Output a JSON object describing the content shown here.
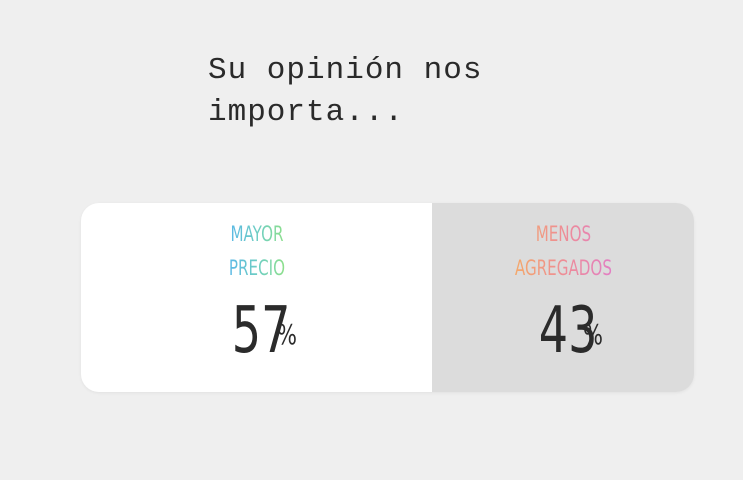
{
  "question": {
    "text": "Su opinión nos\nimporta..."
  },
  "poll": {
    "options": [
      {
        "label_line1": "MAYOR",
        "label_line2": "PRECIO",
        "percent": "57",
        "percent_sign": "%",
        "gradient": [
          "#5bb8e6",
          "#8fe08a"
        ],
        "background": "#ffffff"
      },
      {
        "label_line1": "MENOS",
        "label_line2": "AGREGADOS",
        "percent": "43",
        "percent_sign": "%",
        "gradient": [
          "#f4a86a",
          "#e27fc4"
        ],
        "background": "#dcdcdc"
      }
    ]
  },
  "colors": {
    "page_background": "#efefef",
    "text_dark": "#2b2b2b"
  }
}
